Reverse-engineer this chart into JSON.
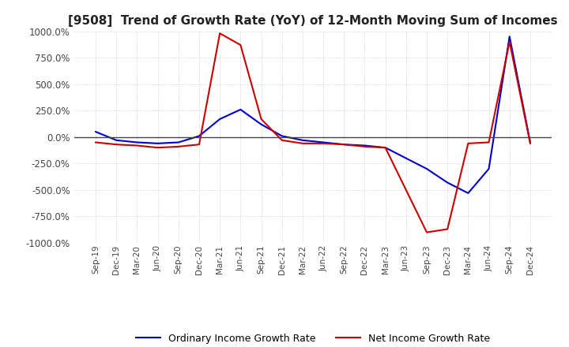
{
  "title": "[9508]  Trend of Growth Rate (YoY) of 12-Month Moving Sum of Incomes",
  "title_fontsize": 11,
  "ylim": [
    -1000,
    1000
  ],
  "yticks": [
    -1000,
    -750,
    -500,
    -250,
    0,
    250,
    500,
    750,
    1000
  ],
  "background_color": "#ffffff",
  "plot_bg_color": "#ffffff",
  "grid_color": "#aaaaaa",
  "ordinary_color": "#0000cc",
  "net_color": "#cc0000",
  "legend_ordinary": "Ordinary Income Growth Rate",
  "legend_net": "Net Income Growth Rate",
  "x_labels": [
    "Sep-19",
    "Dec-19",
    "Mar-20",
    "Jun-20",
    "Sep-20",
    "Dec-20",
    "Mar-21",
    "Jun-21",
    "Sep-21",
    "Dec-21",
    "Mar-22",
    "Jun-22",
    "Sep-22",
    "Dec-22",
    "Mar-23",
    "Jun-23",
    "Sep-23",
    "Dec-23",
    "Mar-24",
    "Jun-24",
    "Sep-24",
    "Dec-24"
  ],
  "ordinary_income": [
    50,
    -30,
    -50,
    -60,
    -50,
    10,
    170,
    260,
    120,
    10,
    -30,
    -50,
    -70,
    -80,
    -100,
    -200,
    -300,
    -430,
    -530,
    -300,
    950,
    -50
  ],
  "net_income": [
    -50,
    -70,
    -80,
    -100,
    -90,
    -70,
    980,
    870,
    170,
    -30,
    -60,
    -60,
    -70,
    -90,
    -100,
    -500,
    -900,
    -870,
    -60,
    -50,
    900,
    -60
  ]
}
